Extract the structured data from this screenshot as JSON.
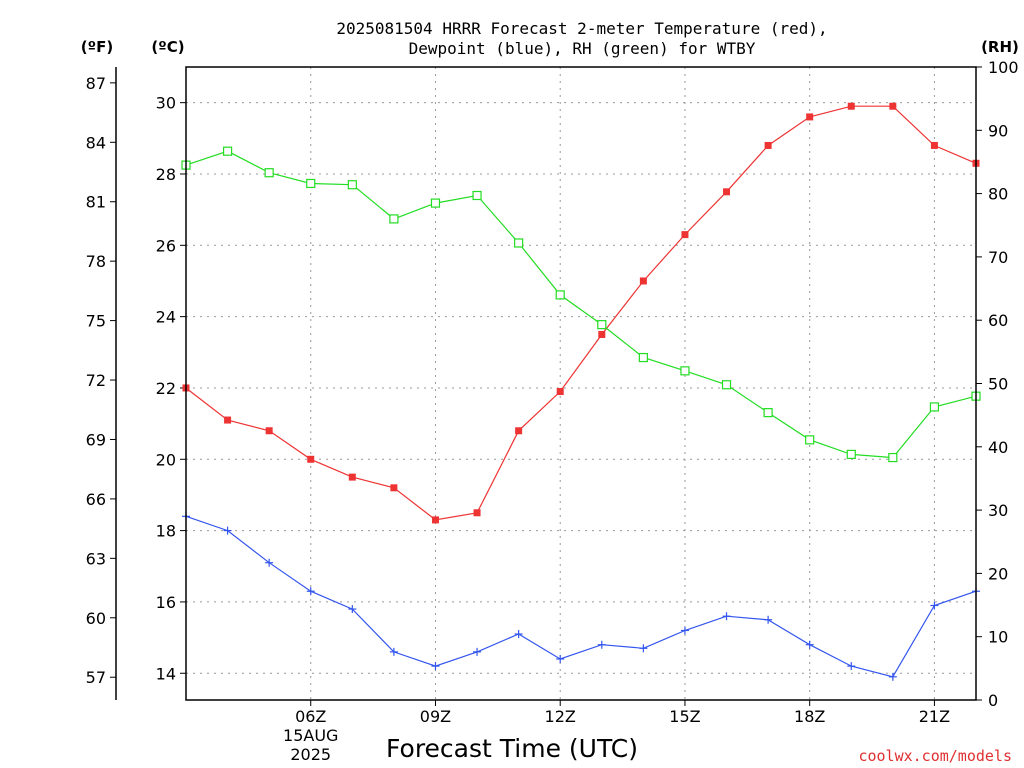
{
  "chart_data": {
    "type": "line",
    "title_line1": "2025081504 HRRR Forecast 2-meter Temperature (red),",
    "title_line2": "Dewpoint (blue), RH (green) for WTBY",
    "xlabel": "Forecast Time (UTC)",
    "credit": "coolwx.com/models",
    "units": {
      "fahrenheit": "(ºF)",
      "celsius": "(ºC)",
      "rh": "(RH)"
    },
    "x_hours_utc": [
      3,
      4,
      5,
      6,
      7,
      8,
      9,
      10,
      11,
      12,
      13,
      14,
      15,
      16,
      17,
      18,
      19,
      20,
      21,
      22
    ],
    "xlim": [
      3,
      22
    ],
    "x_ticks": [
      {
        "hour": 6,
        "label": "06Z",
        "sub1": "15AUG",
        "sub2": "2025"
      },
      {
        "hour": 9,
        "label": "09Z"
      },
      {
        "hour": 12,
        "label": "12Z"
      },
      {
        "hour": 15,
        "label": "15Z"
      },
      {
        "hour": 18,
        "label": "18Z"
      },
      {
        "hour": 21,
        "label": "21Z"
      }
    ],
    "celsius_axis": {
      "ylim": [
        13.25,
        31.0
      ],
      "ticks": [
        "14",
        "16",
        "18",
        "20",
        "22",
        "24",
        "26",
        "28",
        "30"
      ]
    },
    "fahrenheit_axis": {
      "ticks": [
        "57",
        "60",
        "63",
        "66",
        "69",
        "72",
        "75",
        "78",
        "81",
        "84",
        "87"
      ]
    },
    "rh_axis": {
      "ylim": [
        0,
        100
      ],
      "ticks": [
        "0",
        "10",
        "20",
        "30",
        "40",
        "50",
        "60",
        "70",
        "80",
        "90",
        "100"
      ]
    },
    "grid": true,
    "series": [
      {
        "name": "Temperature (red)",
        "axis": "celsius",
        "color": "#ee3333",
        "marker": "filled-square",
        "values": [
          22.0,
          21.1,
          20.8,
          20.0,
          19.5,
          19.2,
          18.3,
          18.5,
          20.8,
          21.9,
          23.5,
          25.0,
          26.3,
          27.5,
          28.8,
          29.6,
          29.9,
          29.9,
          28.8,
          28.3
        ]
      },
      {
        "name": "Dewpoint (blue)",
        "axis": "celsius",
        "color": "#3355ee",
        "marker": "plus",
        "values": [
          18.4,
          18.0,
          17.1,
          16.3,
          15.8,
          14.6,
          14.2,
          14.6,
          15.1,
          14.4,
          14.8,
          14.7,
          15.2,
          15.6,
          15.5,
          14.8,
          14.2,
          13.9,
          15.9,
          16.3
        ]
      },
      {
        "name": "RH (green)",
        "axis": "rh",
        "color": "#22dd22",
        "marker": "open-square",
        "values": [
          84.5,
          86.7,
          83.3,
          81.6,
          81.4,
          76.0,
          78.5,
          79.7,
          72.2,
          64.0,
          59.3,
          54.1,
          52.0,
          49.8,
          45.4,
          41.1,
          38.8,
          38.3,
          46.3,
          48.0
        ]
      }
    ]
  }
}
